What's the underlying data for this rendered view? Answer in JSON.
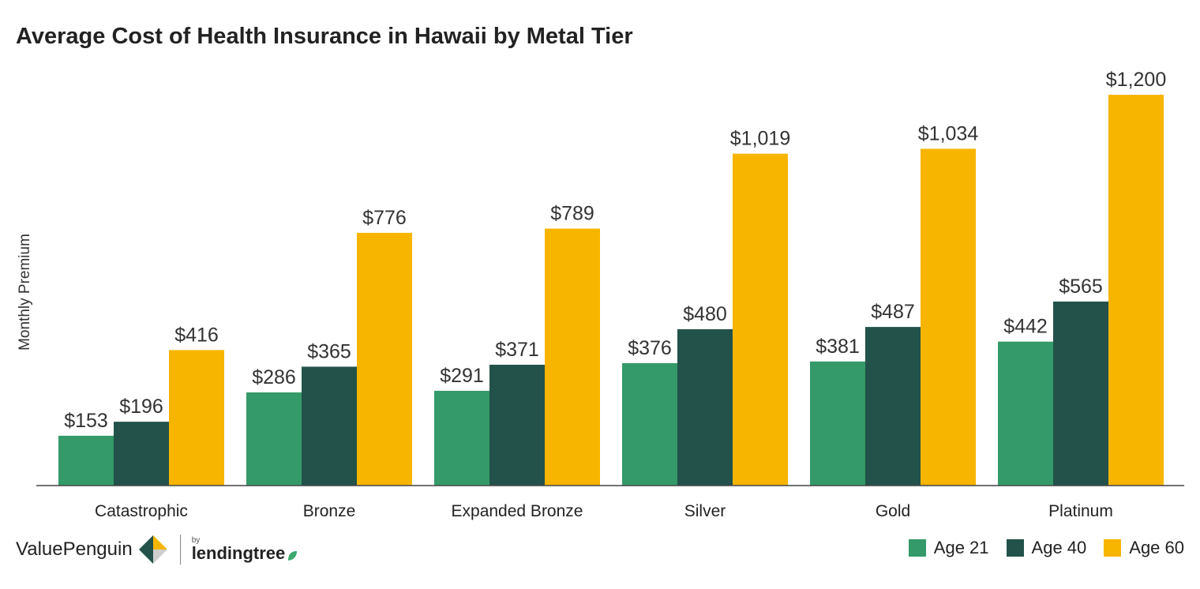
{
  "chart_data": {
    "type": "bar",
    "title": "Average Cost of Health Insurance in Hawaii by Metal Tier",
    "ylabel": "Monthly Premium",
    "xlabel": "",
    "categories": [
      "Catastrophic",
      "Bronze",
      "Expanded Bronze",
      "Silver",
      "Gold",
      "Platinum"
    ],
    "series": [
      {
        "name": "Age 21",
        "values": [
          153,
          286,
          291,
          376,
          381,
          442
        ],
        "labels": [
          "$153",
          "$286",
          "$291",
          "$376",
          "$381",
          "$442"
        ],
        "color": "#349a69"
      },
      {
        "name": "Age 40",
        "values": [
          196,
          365,
          371,
          480,
          487,
          565
        ],
        "labels": [
          "$196",
          "$365",
          "$371",
          "$480",
          "$487",
          "$565"
        ],
        "color": "#22524a"
      },
      {
        "name": "Age 60",
        "values": [
          416,
          776,
          789,
          1019,
          1034,
          1200
        ],
        "labels": [
          "$416",
          "$776",
          "$789",
          "$1,019",
          "$1,034",
          "$1,200"
        ],
        "color": "#f7b500"
      }
    ],
    "ylim": [
      0,
      1200
    ],
    "grid": false,
    "legend_position": "bottom-right"
  },
  "branding": {
    "valuepenguin": "ValuePenguin",
    "by": "by",
    "lendingtree": "lendingtree"
  },
  "colors": {
    "age21": "#349a69",
    "age40": "#22524a",
    "age60": "#f7b500",
    "axis": "#444444"
  }
}
